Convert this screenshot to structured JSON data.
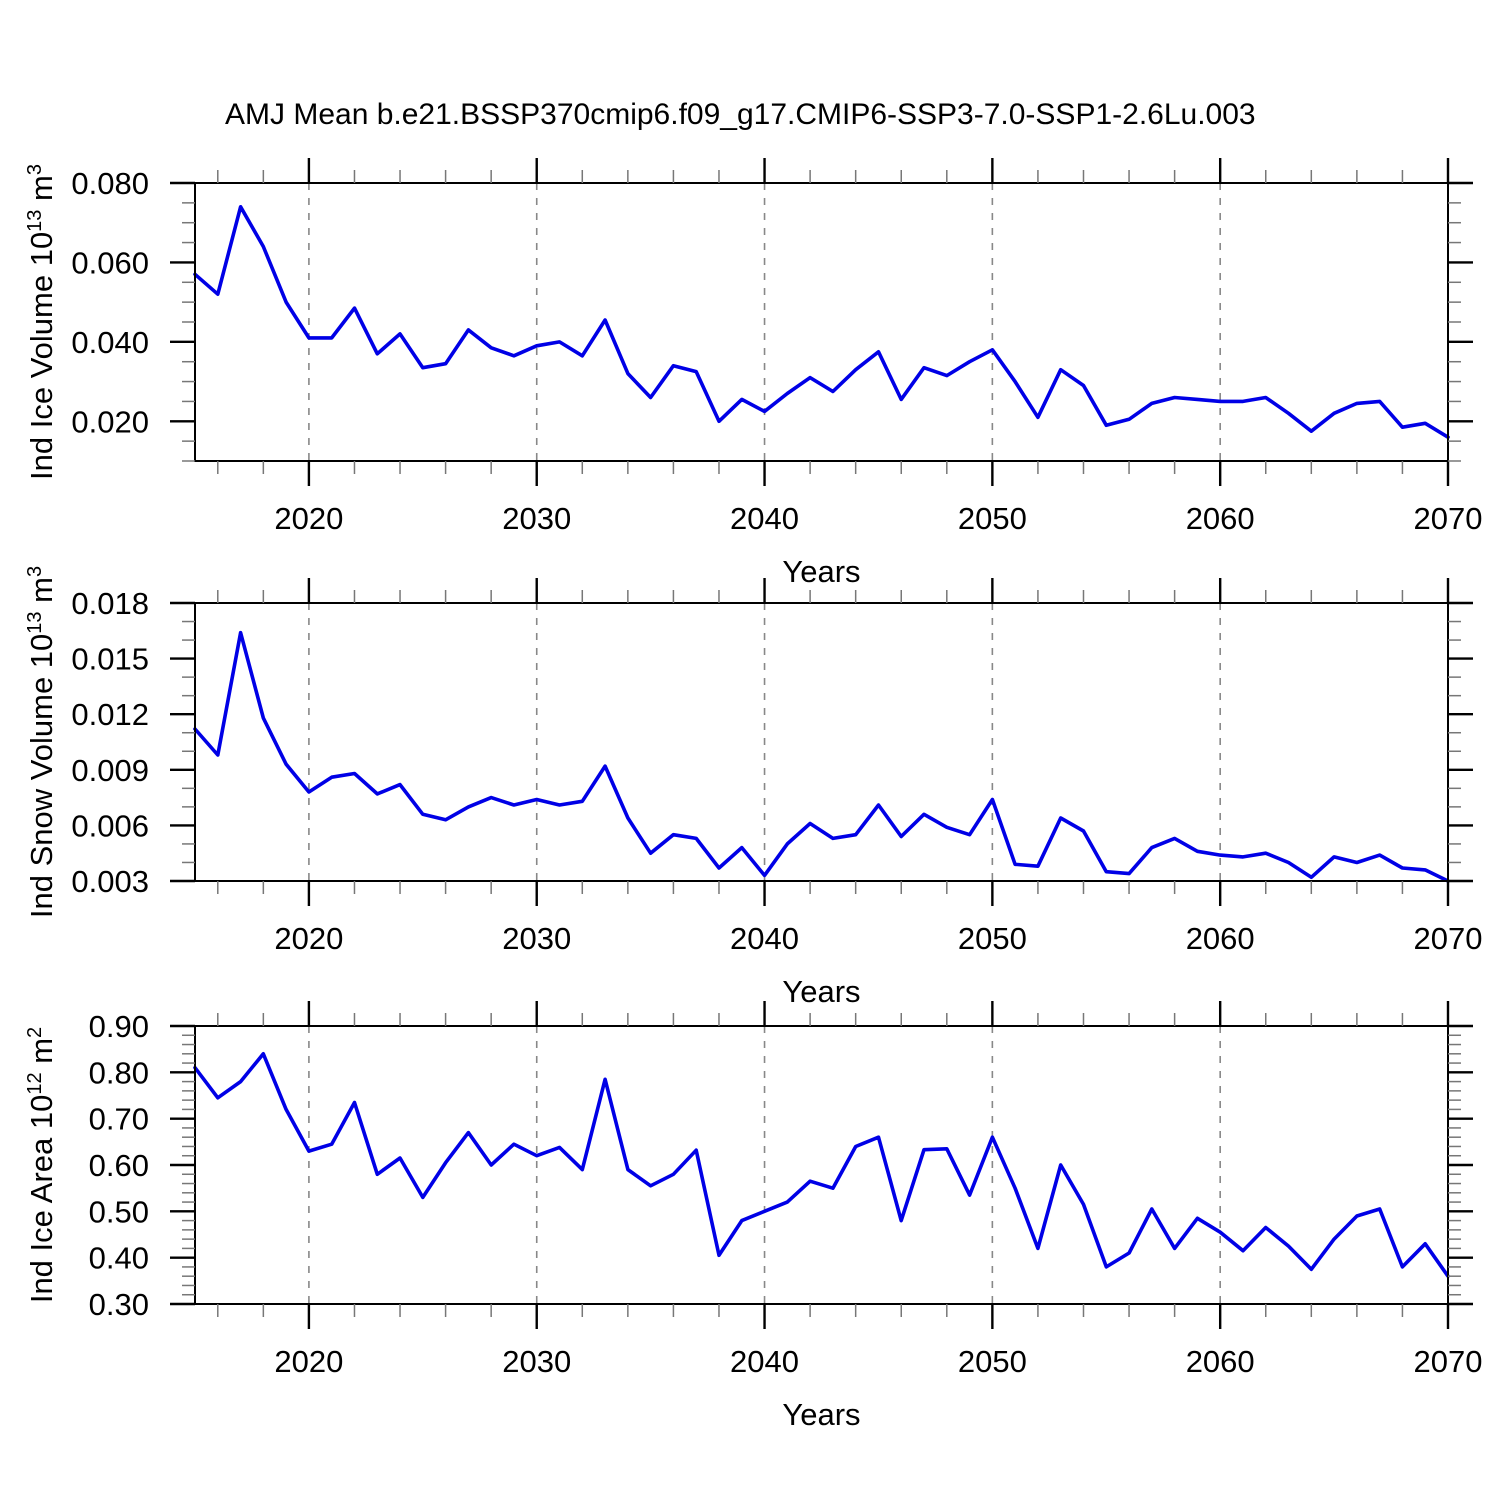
{
  "title": "AMJ Mean b.e21.BSSP370cmip6.f09_g17.CMIP6-SSP3-7.0-SSP1-2.6Lu.003",
  "colors": {
    "line": "#0000e6",
    "grid": "#888888",
    "frame": "#000000",
    "major_tick": "#000000",
    "minor_tick": "#777777",
    "text": "#000000",
    "background": "#ffffff"
  },
  "x_axis": {
    "label": "Years",
    "min": 2015,
    "max": 2070,
    "major_ticks": [
      2020,
      2030,
      2040,
      2050,
      2060,
      2070
    ],
    "minor_step": 2,
    "gridline_years": [
      2020,
      2030,
      2040,
      2050,
      2060
    ],
    "years": [
      2015,
      2016,
      2017,
      2018,
      2019,
      2020,
      2021,
      2022,
      2023,
      2024,
      2025,
      2026,
      2027,
      2028,
      2029,
      2030,
      2031,
      2032,
      2033,
      2034,
      2035,
      2036,
      2037,
      2038,
      2039,
      2040,
      2041,
      2042,
      2043,
      2044,
      2045,
      2046,
      2047,
      2048,
      2049,
      2050,
      2051,
      2052,
      2053,
      2054,
      2055,
      2056,
      2057,
      2058,
      2059,
      2060,
      2061,
      2062,
      2063,
      2064,
      2065,
      2066,
      2067,
      2068,
      2069,
      2070
    ]
  },
  "chart_data": [
    {
      "type": "line",
      "id": "ice-volume",
      "title": "",
      "ylabel": "Ind Ice Volume 10^13 m^3",
      "ylabel_parts": [
        {
          "text": "Ind Ice Volume 10",
          "sup": false
        },
        {
          "text": "13",
          "sup": true
        },
        {
          "text": " m",
          "sup": false
        },
        {
          "text": "3",
          "sup": true
        }
      ],
      "xlabel": "Years",
      "xlim": [
        2015,
        2070
      ],
      "ylim": [
        0.01,
        0.08
      ],
      "ytick_values": [
        0.02,
        0.04,
        0.06,
        0.08
      ],
      "ytick_labels": [
        "0.020",
        "0.040",
        "0.060",
        "0.080"
      ],
      "yminor_step": 0.005,
      "grid": "dashed-vertical-at-decades",
      "legend": "none",
      "values": [
        0.057,
        0.052,
        0.074,
        0.064,
        0.05,
        0.041,
        0.041,
        0.0485,
        0.037,
        0.042,
        0.0335,
        0.0345,
        0.043,
        0.0385,
        0.0365,
        0.039,
        0.04,
        0.0365,
        0.0455,
        0.032,
        0.026,
        0.034,
        0.0325,
        0.02,
        0.0255,
        0.0225,
        0.027,
        0.031,
        0.0275,
        0.033,
        0.0375,
        0.0255,
        0.0335,
        0.0315,
        0.035,
        0.038,
        0.03,
        0.021,
        0.033,
        0.029,
        0.019,
        0.0205,
        0.0245,
        0.026,
        0.0255,
        0.025,
        0.025,
        0.026,
        0.022,
        0.0175,
        0.022,
        0.0245,
        0.025,
        0.0185,
        0.0195,
        0.016
      ]
    },
    {
      "type": "line",
      "id": "snow-volume",
      "title": "",
      "ylabel": "Ind Snow Volume 10^13 m^3",
      "ylabel_parts": [
        {
          "text": "Ind Snow Volume 10",
          "sup": false
        },
        {
          "text": "13",
          "sup": true
        },
        {
          "text": " m",
          "sup": false
        },
        {
          "text": "3",
          "sup": true
        }
      ],
      "xlabel": "Years",
      "xlim": [
        2015,
        2070
      ],
      "ylim": [
        0.003,
        0.018
      ],
      "ytick_values": [
        0.003,
        0.006,
        0.009,
        0.012,
        0.015,
        0.018
      ],
      "ytick_labels": [
        "0.003",
        "0.006",
        "0.009",
        "0.012",
        "0.015",
        "0.018"
      ],
      "yminor_step": 0.001,
      "grid": "dashed-vertical-at-decades",
      "legend": "none",
      "values": [
        0.0112,
        0.0098,
        0.0164,
        0.0118,
        0.0093,
        0.0078,
        0.0086,
        0.0088,
        0.0077,
        0.0082,
        0.0066,
        0.0063,
        0.007,
        0.0075,
        0.0071,
        0.0074,
        0.0071,
        0.0073,
        0.0092,
        0.0064,
        0.0045,
        0.0055,
        0.0053,
        0.0037,
        0.0048,
        0.0033,
        0.005,
        0.0061,
        0.0053,
        0.0055,
        0.0071,
        0.0054,
        0.0066,
        0.0059,
        0.0055,
        0.0074,
        0.0039,
        0.0038,
        0.0064,
        0.0057,
        0.0035,
        0.0034,
        0.0048,
        0.0053,
        0.0046,
        0.0044,
        0.0043,
        0.0045,
        0.004,
        0.0032,
        0.0043,
        0.004,
        0.0044,
        0.0037,
        0.0036,
        0.003
      ]
    },
    {
      "type": "line",
      "id": "ice-area",
      "title": "",
      "ylabel": "Ind Ice Area 10^12 m^2",
      "ylabel_parts": [
        {
          "text": "Ind Ice Area 10",
          "sup": false
        },
        {
          "text": "12",
          "sup": true
        },
        {
          "text": " m",
          "sup": false
        },
        {
          "text": "2",
          "sup": true
        }
      ],
      "xlabel": "Years",
      "xlim": [
        2015,
        2070
      ],
      "ylim": [
        0.3,
        0.9
      ],
      "ytick_values": [
        0.3,
        0.4,
        0.5,
        0.6,
        0.7,
        0.8,
        0.9
      ],
      "ytick_labels": [
        "0.30",
        "0.40",
        "0.50",
        "0.60",
        "0.70",
        "0.80",
        "0.90"
      ],
      "yminor_step": 0.02,
      "grid": "dashed-vertical-at-decades",
      "legend": "none",
      "values": [
        0.81,
        0.745,
        0.78,
        0.84,
        0.72,
        0.63,
        0.645,
        0.735,
        0.58,
        0.615,
        0.53,
        0.605,
        0.67,
        0.6,
        0.645,
        0.62,
        0.638,
        0.59,
        0.785,
        0.59,
        0.555,
        0.58,
        0.632,
        0.405,
        0.48,
        0.5,
        0.52,
        0.565,
        0.55,
        0.64,
        0.66,
        0.48,
        0.633,
        0.635,
        0.535,
        0.66,
        0.55,
        0.42,
        0.6,
        0.515,
        0.38,
        0.41,
        0.505,
        0.42,
        0.485,
        0.455,
        0.415,
        0.465,
        0.425,
        0.375,
        0.44,
        0.49,
        0.505,
        0.38,
        0.43,
        0.36
      ]
    }
  ]
}
